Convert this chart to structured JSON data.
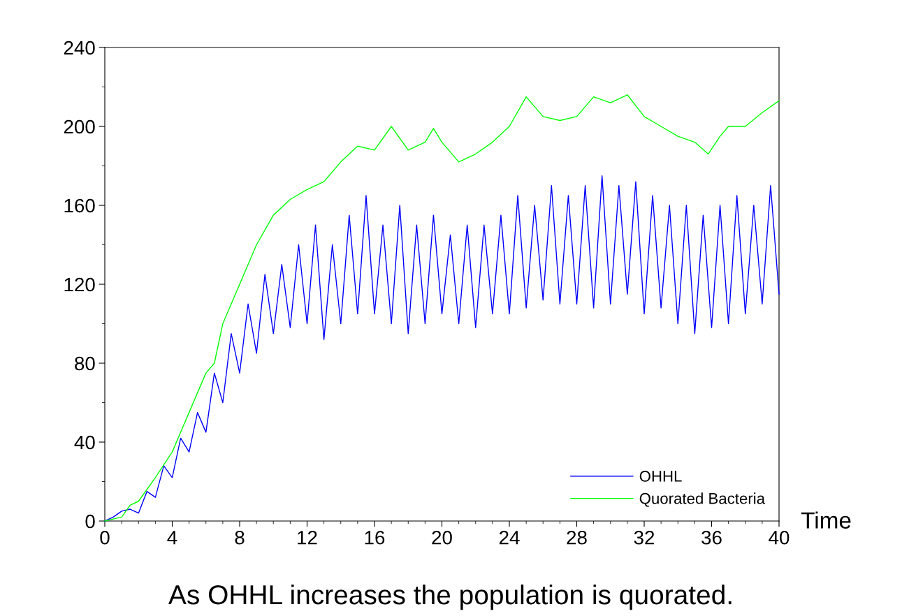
{
  "chart_data": {
    "type": "line",
    "xlabel": "Time",
    "xlim": [
      0,
      40
    ],
    "xticks": [
      0,
      4,
      8,
      12,
      16,
      20,
      24,
      28,
      32,
      36,
      40
    ],
    "ylim": [
      0,
      240
    ],
    "yticks": [
      0,
      40,
      80,
      120,
      160,
      200,
      240
    ],
    "grid": false,
    "legend": "lower right",
    "line_style": "solid",
    "annotations": [
      "As OHHL increases the population is quorated."
    ],
    "series": [
      {
        "name": "OHHL",
        "color": "#0000ff",
        "x": [
          0,
          0.5,
          1,
          1.5,
          2,
          2.5,
          3,
          3.5,
          4,
          4.5,
          5,
          5.5,
          6,
          6.5,
          7,
          7.5,
          8,
          8.5,
          9,
          9.5,
          10,
          10.5,
          11,
          11.5,
          12,
          12.5,
          13,
          13.5,
          14,
          14.5,
          15,
          15.5,
          16,
          16.5,
          17,
          17.5,
          18,
          18.5,
          19,
          19.5,
          20,
          20.5,
          21,
          21.5,
          22,
          22.5,
          23,
          23.5,
          24,
          24.5,
          25,
          25.5,
          26,
          26.5,
          27,
          27.5,
          28,
          28.5,
          29,
          29.5,
          30,
          30.5,
          31,
          31.5,
          32,
          32.5,
          33,
          33.5,
          34,
          34.5,
          35,
          35.5,
          36,
          36.5,
          37,
          37.5,
          38,
          38.5,
          39,
          39.5,
          40
        ],
        "values": [
          0,
          2,
          5,
          6,
          4,
          15,
          12,
          28,
          22,
          42,
          35,
          55,
          45,
          75,
          60,
          95,
          75,
          110,
          85,
          125,
          95,
          130,
          98,
          140,
          100,
          150,
          92,
          140,
          100,
          155,
          105,
          165,
          105,
          150,
          100,
          160,
          95,
          150,
          100,
          155,
          105,
          145,
          100,
          150,
          98,
          150,
          105,
          155,
          105,
          165,
          108,
          160,
          112,
          170,
          110,
          165,
          110,
          170,
          108,
          175,
          110,
          170,
          115,
          172,
          105,
          165,
          108,
          160,
          100,
          160,
          95,
          155,
          98,
          160,
          100,
          165,
          105,
          160,
          110,
          170,
          115
        ]
      },
      {
        "name": "Quorated Bacteria",
        "color": "#00ff00",
        "x": [
          0,
          1,
          1.5,
          2,
          3,
          4,
          5,
          6,
          6.5,
          7,
          8,
          9,
          10,
          11,
          12,
          13,
          14,
          15,
          16,
          17,
          18,
          19,
          19.5,
          20,
          21,
          22,
          23,
          24,
          25,
          26,
          27,
          28,
          29,
          30,
          31,
          32,
          33,
          34,
          35,
          35.8,
          36.5,
          37,
          38,
          39,
          40
        ],
        "values": [
          0,
          2,
          8,
          10,
          22,
          35,
          55,
          75,
          80,
          100,
          120,
          140,
          155,
          163,
          168,
          172,
          182,
          190,
          188,
          200,
          188,
          192,
          199,
          192,
          182,
          186,
          192,
          200,
          215,
          205,
          203,
          205,
          215,
          212,
          216,
          205,
          200,
          195,
          192,
          186,
          195,
          200,
          200,
          207,
          213
        ]
      }
    ]
  }
}
